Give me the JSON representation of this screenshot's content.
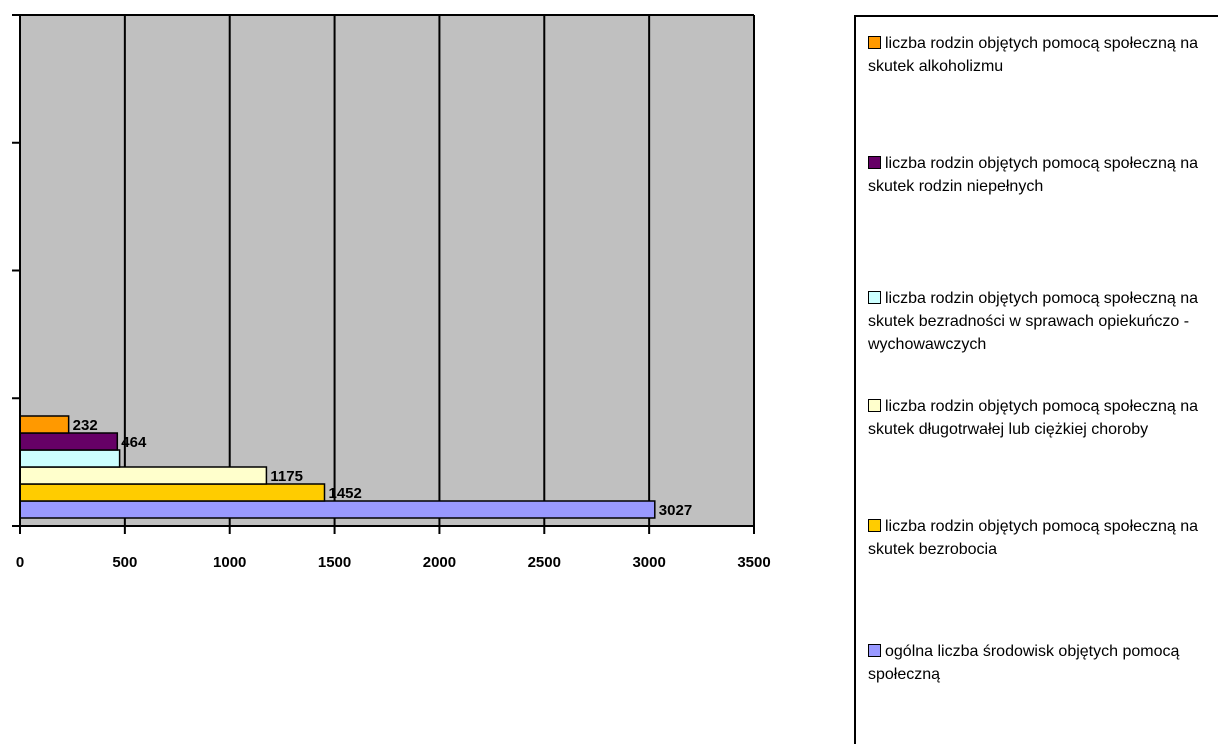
{
  "chart_data": {
    "type": "bar",
    "orientation": "horizontal",
    "xlim": [
      0,
      3500
    ],
    "x_ticks": [
      "0",
      "500",
      "1000",
      "1500",
      "2000",
      "2500",
      "3000",
      "3500"
    ],
    "grid": true,
    "legend_position": "right",
    "series": [
      {
        "name": "ogólna liczba środowisk objętych pomocą społeczną",
        "value": 3027,
        "label": "3027",
        "color": "#9999FF"
      },
      {
        "name": "liczba rodzin objętych pomocą społeczną na skutek bezrobocia",
        "value": 1452,
        "label": "1452",
        "color": "#FFCC00"
      },
      {
        "name": "liczba rodzin objętych pomocą społeczną na skutek długotrwałej lub ciężkiej choroby",
        "value": 1175,
        "label": "1175",
        "color": "#FFFFCC"
      },
      {
        "name": "liczba rodzin objętych pomocą społeczną na skutek bezradności w sprawach opiekuńczo - wychowawczych",
        "value": 475,
        "label": "",
        "color": "#CCFFFF"
      },
      {
        "name": "liczba rodzin objętych pomocą społeczną na skutek rodzin niepełnych",
        "value": 464,
        "label": "464",
        "color": "#660066"
      },
      {
        "name": "liczba rodzin objętych pomocą społeczną na skutek alkoholizmu",
        "value": 232,
        "label": "232",
        "color": "#FF9900"
      }
    ]
  },
  "legend": {
    "items": [
      {
        "label": "liczba rodzin objętych pomocą społeczną na skutek alkoholizmu",
        "color": "#FF9900"
      },
      {
        "label": "liczba rodzin objętych pomocą społeczną na skutek rodzin niepełnych",
        "color": "#660066"
      },
      {
        "label": "liczba rodzin objętych pomocą społeczną na skutek bezradności w sprawach opiekuńczo - wychowawczych",
        "color": "#CCFFFF"
      },
      {
        "label": "liczba rodzin objętych pomocą społeczną na skutek długotrwałej lub ciężkiej choroby",
        "color": "#FFFFCC"
      },
      {
        "label": "liczba rodzin objętych pomocą społeczną na skutek bezrobocia",
        "color": "#FFCC00"
      },
      {
        "label": "ogólna liczba środowisk objętych pomocą społeczną",
        "color": "#9999FF"
      }
    ]
  },
  "colors": {
    "plot_background": "#C0C0C0",
    "gridline": "#000000"
  }
}
